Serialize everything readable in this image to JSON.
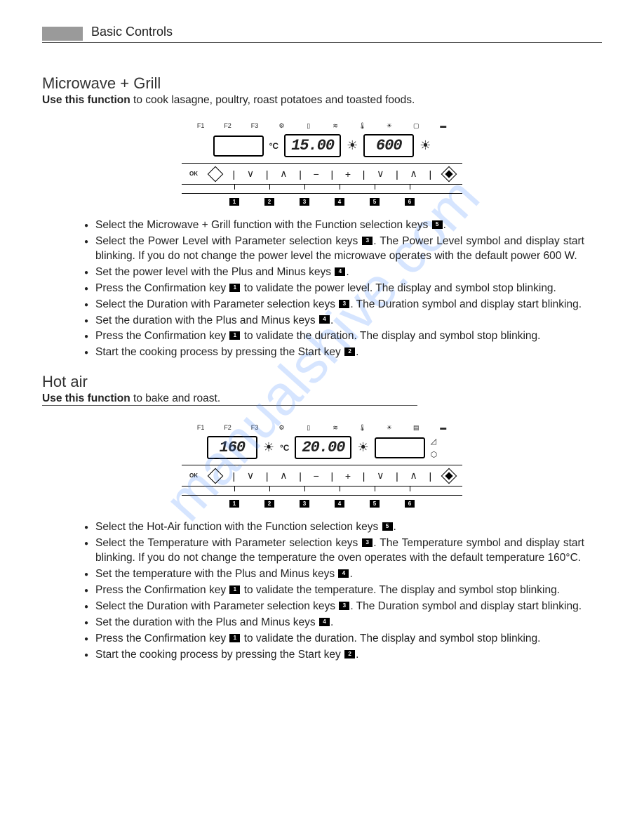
{
  "header": {
    "title": "Basic Controls"
  },
  "watermark": "manualshive.com",
  "section1": {
    "title": "Microwave + Grill",
    "use_bold": "Use this function",
    "use_rest": " to cook lasagne, poultry, roast potatoes and toasted foods.",
    "panel": {
      "top_icons": [
        "F1",
        "F2",
        "F3",
        "⚙",
        "▯",
        "≋",
        "🌡",
        "☀",
        "▢",
        "▬"
      ],
      "left_display": "",
      "mid_display": "15.00",
      "right_display": "600",
      "temp_unit": "°C",
      "controls": [
        "OK",
        "◇",
        "|",
        "∨",
        "|",
        "∧",
        "|",
        "−",
        "|",
        "+",
        "|",
        "∨",
        "|",
        "∧",
        "|",
        "◈"
      ],
      "nums": [
        "1",
        "2",
        "3",
        "4",
        "5",
        "6"
      ]
    },
    "bullets": [
      {
        "parts": [
          {
            "t": "Select the Microwave + Grill function with the Function selection keys "
          },
          {
            "k": "5"
          },
          {
            "t": "."
          }
        ]
      },
      {
        "parts": [
          {
            "t": "Select the Power Level with Parameter selection keys "
          },
          {
            "k": "3"
          },
          {
            "t": ". The Power Level symbol and display start blinking. If you do not change the power level the microwave operates with the default power 600 W."
          }
        ]
      },
      {
        "parts": [
          {
            "t": "Set the power level with the Plus and Minus keys "
          },
          {
            "k": "4"
          },
          {
            "t": "."
          }
        ]
      },
      {
        "parts": [
          {
            "t": "Press the Confirmation key "
          },
          {
            "k": "1"
          },
          {
            "t": " to validate the power level. The display and symbol stop blinking."
          }
        ]
      },
      {
        "parts": [
          {
            "t": "Select the Duration with Parameter selection keys "
          },
          {
            "k": "3"
          },
          {
            "t": ". The Duration symbol and display start blinking."
          }
        ]
      },
      {
        "parts": [
          {
            "t": "Set the duration with the Plus and Minus keys "
          },
          {
            "k": "4"
          },
          {
            "t": "."
          }
        ]
      },
      {
        "parts": [
          {
            "t": "Press the Confirmation key "
          },
          {
            "k": "1"
          },
          {
            "t": " to validate the duration. The display and symbol stop blinking."
          }
        ]
      },
      {
        "parts": [
          {
            "t": "Start the cooking process by pressing the Start key "
          },
          {
            "k": "2"
          },
          {
            "t": "."
          }
        ]
      }
    ]
  },
  "section2": {
    "title": "Hot air",
    "use_bold": "Use this function",
    "use_rest": " to bake and roast.",
    "panel": {
      "top_icons": [
        "F1",
        "F2",
        "F3",
        "⚙",
        "▯",
        "≋",
        "🌡",
        "☀",
        "▤",
        "▬"
      ],
      "left_display": "160",
      "mid_display": "20.00",
      "right_display": "",
      "temp_unit": "°C",
      "side_icons": [
        "◿",
        "⬡"
      ],
      "controls": [
        "OK",
        "◇",
        "|",
        "∨",
        "|",
        "∧",
        "|",
        "−",
        "|",
        "+",
        "|",
        "∨",
        "|",
        "∧",
        "|",
        "◈"
      ],
      "nums": [
        "1",
        "2",
        "3",
        "4",
        "5",
        "6"
      ]
    },
    "bullets": [
      {
        "parts": [
          {
            "t": "Select the Hot-Air function with the Function selection keys "
          },
          {
            "k": "5"
          },
          {
            "t": "."
          }
        ]
      },
      {
        "parts": [
          {
            "t": "Select the Temperature with Parameter selection keys "
          },
          {
            "k": "3"
          },
          {
            "t": ". The Temperature symbol and display start blinking. If you do not change the temperature the oven operates with the default temperature 160°C."
          }
        ]
      },
      {
        "parts": [
          {
            "t": "Set the temperature with the Plus and Minus keys "
          },
          {
            "k": "4"
          },
          {
            "t": "."
          }
        ]
      },
      {
        "parts": [
          {
            "t": "Press the Confirmation key "
          },
          {
            "k": "1"
          },
          {
            "t": " to validate the temperature. The display and symbol stop blinking."
          }
        ]
      },
      {
        "parts": [
          {
            "t": "Select the Duration with Parameter selection keys "
          },
          {
            "k": "3"
          },
          {
            "t": ". The Duration symbol and display start blinking."
          }
        ]
      },
      {
        "parts": [
          {
            "t": "Set the duration with the Plus and Minus keys "
          },
          {
            "k": "4"
          },
          {
            "t": "."
          }
        ]
      },
      {
        "parts": [
          {
            "t": "Press the Confirmation key "
          },
          {
            "k": "1"
          },
          {
            "t": " to validate the duration. The display and symbol stop blinking."
          }
        ]
      },
      {
        "parts": [
          {
            "t": "Start the cooking process by pressing the Start key "
          },
          {
            "k": "2"
          },
          {
            "t": "."
          }
        ]
      }
    ]
  }
}
